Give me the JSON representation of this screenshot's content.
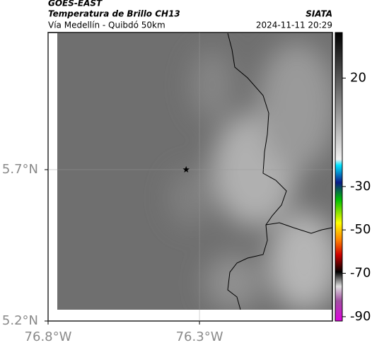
{
  "header": {
    "satellite": "GOES-EAST",
    "title": "Temperatura de Brillo CH13",
    "source": "SIATA",
    "subtitle": "Vía Medellín - Quibdó 50km",
    "datetime": "2024-11-11 20:29"
  },
  "map": {
    "xlim": [
      -76.8,
      -75.861
    ],
    "ylim": [
      5.2,
      6.153
    ],
    "xticks": [
      {
        "value": -76.8,
        "label": "76.8°W"
      },
      {
        "value": -76.3,
        "label": "76.3°W"
      }
    ],
    "yticks": [
      {
        "value": 5.2,
        "label": "5.2°N"
      },
      {
        "value": 5.7,
        "label": "5.7°N"
      }
    ],
    "marker": {
      "lon": -76.344,
      "lat": 5.7
    }
  },
  "colorbar": {
    "range": [
      -92,
      41
    ],
    "ticks": [
      20,
      -30,
      -50,
      -70,
      -90
    ]
  }
}
